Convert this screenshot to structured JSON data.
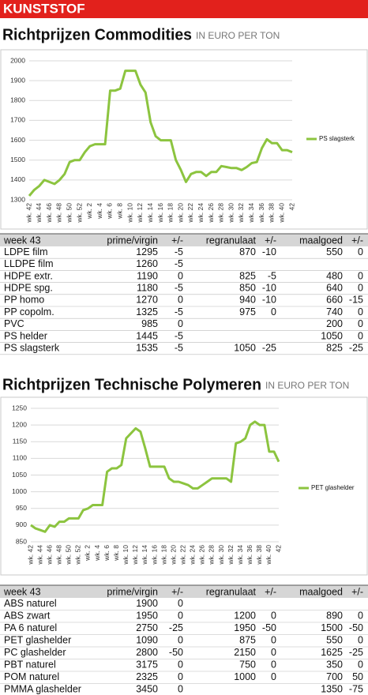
{
  "header": "KUNSTSTOF",
  "chart_data": [
    {
      "type": "line",
      "title": "Richtprijzen Commodities",
      "subtitle": "IN EURO PER TON",
      "categories": [
        "wk. 42",
        null,
        "wk. 44",
        null,
        "wk. 46",
        null,
        "wk. 48",
        null,
        "wk. 50",
        null,
        "wk. 52",
        null,
        "wk. 2",
        null,
        "wk. 4",
        null,
        "wk. 6",
        null,
        "wk. 8",
        null,
        "wk. 10",
        null,
        "wk. 12",
        null,
        "wk. 14",
        null,
        "wk. 16",
        null,
        "wk. 18",
        null,
        "wk. 20",
        null,
        "wk. 22",
        null,
        "wk. 24",
        null,
        "wk. 26",
        null,
        "wk. 28",
        null,
        "wk. 30",
        null,
        "wk. 32",
        null,
        "wk. 34",
        null,
        "wk. 36",
        null,
        "wk. 38",
        null,
        "wk. 40",
        null,
        "42"
      ],
      "series": [
        {
          "name": "PS slagsterk",
          "color": "#8cc43f",
          "values": [
            1320,
            1350,
            1370,
            1400,
            1390,
            1380,
            1400,
            1430,
            1490,
            1500,
            1500,
            1540,
            1570,
            1580,
            1580,
            1580,
            1850,
            1850,
            1860,
            1950,
            1950,
            1950,
            1880,
            1840,
            1690,
            1620,
            1600,
            1600,
            1600,
            1500,
            1450,
            1390,
            1430,
            1440,
            1440,
            1420,
            1440,
            1440,
            1470,
            1465,
            1460,
            1460,
            1450,
            1465,
            1485,
            1490,
            1560,
            1605,
            1585,
            1585,
            1550,
            1550,
            1540
          ]
        }
      ],
      "ylim": [
        1300,
        2000
      ],
      "yticks": [
        1300,
        1400,
        1500,
        1600,
        1700,
        1800,
        1900,
        2000
      ],
      "grid": true,
      "legend": "right"
    },
    {
      "type": "line",
      "title": "Richtprijzen Technische Polymeren",
      "subtitle": "IN EURO PER TON",
      "categories": [
        "wk. 42",
        null,
        "wk. 44",
        null,
        "wk. 46",
        null,
        "wk. 48",
        null,
        "wk. 50",
        null,
        "wk. 52",
        null,
        "wk. 2",
        null,
        "wk. 4",
        null,
        "wk. 6",
        null,
        "wk. 8",
        null,
        "wk. 10",
        null,
        "wk. 12",
        null,
        "wk. 14",
        null,
        "wk. 16",
        null,
        "wk. 18",
        null,
        "wk. 20",
        null,
        "wk. 22",
        null,
        "wk. 24",
        null,
        "wk. 26",
        null,
        "wk. 28",
        null,
        "wk. 30",
        null,
        "wk. 32",
        null,
        "wk. 34",
        null,
        "wk. 36",
        null,
        "wk. 38",
        null,
        "wk. 40",
        null,
        "42"
      ],
      "series": [
        {
          "name": "PET glashelder",
          "color": "#8cc43f",
          "values": [
            900,
            890,
            885,
            880,
            900,
            895,
            910,
            910,
            920,
            920,
            920,
            945,
            950,
            960,
            960,
            960,
            1060,
            1070,
            1070,
            1080,
            1160,
            1175,
            1190,
            1180,
            1130,
            1075,
            1075,
            1075,
            1075,
            1040,
            1030,
            1030,
            1025,
            1020,
            1010,
            1010,
            1020,
            1030,
            1040,
            1040,
            1040,
            1040,
            1030,
            1145,
            1150,
            1160,
            1200,
            1210,
            1200,
            1200,
            1120,
            1120,
            1090
          ]
        }
      ],
      "ylim": [
        850,
        1250
      ],
      "yticks": [
        850,
        900,
        950,
        1000,
        1050,
        1100,
        1150,
        1200,
        1250
      ],
      "grid": true,
      "legend": "right"
    }
  ],
  "tables": [
    {
      "columns": [
        "week 43",
        "prime/virgin",
        "+/-",
        "regranulaat",
        "+/-",
        "maalgoed",
        "+/-"
      ],
      "rows": [
        [
          "LDPE film",
          1295,
          -5,
          870,
          -10,
          550,
          0
        ],
        [
          "LLDPE film",
          1260,
          -5,
          null,
          null,
          null,
          null
        ],
        [
          "HDPE extr.",
          1190,
          0,
          825,
          -5,
          480,
          0
        ],
        [
          "HDPE spg.",
          1180,
          -5,
          850,
          -10,
          640,
          0
        ],
        [
          "PP homo",
          1270,
          0,
          940,
          -10,
          660,
          -15
        ],
        [
          "PP copolm.",
          1325,
          -5,
          975,
          0,
          740,
          0
        ],
        [
          "PVC",
          985,
          0,
          null,
          null,
          200,
          0
        ],
        [
          "PS helder",
          1445,
          -5,
          null,
          null,
          1050,
          0
        ],
        [
          "PS slagsterk",
          1535,
          -5,
          1050,
          -25,
          825,
          -25
        ]
      ]
    },
    {
      "columns": [
        "week 43",
        "prime/virgin",
        "+/-",
        "regranulaat",
        "+/-",
        "maalgoed",
        "+/-"
      ],
      "rows": [
        [
          "ABS naturel",
          1900,
          0,
          null,
          null,
          null,
          null
        ],
        [
          "ABS zwart",
          1950,
          0,
          1200,
          0,
          890,
          0
        ],
        [
          "PA 6 naturel",
          2750,
          -25,
          1950,
          -50,
          1500,
          -50
        ],
        [
          "PET glashelder",
          1090,
          0,
          875,
          0,
          550,
          0
        ],
        [
          "PC glashelder",
          2800,
          -50,
          2150,
          0,
          1625,
          -25
        ],
        [
          "PBT naturel",
          3175,
          0,
          750,
          0,
          350,
          0
        ],
        [
          "POM naturel",
          2325,
          0,
          1000,
          0,
          700,
          50
        ],
        [
          "PMMA glashelder",
          3450,
          0,
          null,
          null,
          1350,
          -75
        ]
      ]
    }
  ]
}
